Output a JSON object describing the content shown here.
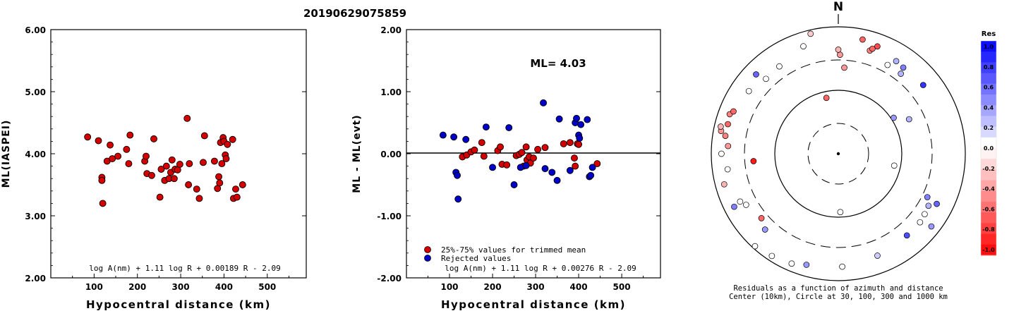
{
  "title": "20190629075859",
  "colors": {
    "red": "#d40000",
    "blue": "#0000c8",
    "black": "#000000"
  },
  "chart_data": [
    {
      "type": "scatter",
      "xlabel": "Hypocentral distance (km)",
      "ylabel": "ML(IASPEI)",
      "xlim": [
        0,
        590
      ],
      "ylim": [
        2.0,
        6.0
      ],
      "xticks": [
        100,
        200,
        300,
        400,
        500
      ],
      "yticks": [
        "2.00",
        "3.00",
        "4.00",
        "5.00",
        "6.00"
      ],
      "formula": "log A(nm) + 1.11 log R + 0.00189 R - 2.09",
      "series": [
        {
          "color": "#d40000",
          "points": [
            [
              85,
              4.27
            ],
            [
              110,
              4.21
            ],
            [
              118,
              3.62
            ],
            [
              118,
              3.57
            ],
            [
              120,
              3.2
            ],
            [
              130,
              3.88
            ],
            [
              137,
              4.14
            ],
            [
              142,
              3.92
            ],
            [
              155,
              3.96
            ],
            [
              175,
              4.07
            ],
            [
              180,
              3.84
            ],
            [
              183,
              4.3
            ],
            [
              217,
              3.88
            ],
            [
              220,
              3.96
            ],
            [
              222,
              3.68
            ],
            [
              233,
              3.65
            ],
            [
              238,
              4.24
            ],
            [
              252,
              3.3
            ],
            [
              255,
              3.75
            ],
            [
              263,
              3.57
            ],
            [
              267,
              3.8
            ],
            [
              273,
              3.6
            ],
            [
              277,
              3.7
            ],
            [
              280,
              3.9
            ],
            [
              285,
              3.6
            ],
            [
              287,
              3.75
            ],
            [
              293,
              3.74
            ],
            [
              298,
              3.83
            ],
            [
              315,
              4.57
            ],
            [
              318,
              3.5
            ],
            [
              320,
              3.84
            ],
            [
              337,
              3.43
            ],
            [
              343,
              3.28
            ],
            [
              352,
              3.86
            ],
            [
              355,
              4.29
            ],
            [
              378,
              3.88
            ],
            [
              385,
              3.44
            ],
            [
              388,
              3.63
            ],
            [
              390,
              3.53
            ],
            [
              392,
              4.18
            ],
            [
              395,
              3.84
            ],
            [
              398,
              4.26
            ],
            [
              400,
              4.2
            ],
            [
              403,
              3.98
            ],
            [
              405,
              3.92
            ],
            [
              408,
              4.15
            ],
            [
              420,
              4.23
            ],
            [
              422,
              3.28
            ],
            [
              427,
              3.43
            ],
            [
              430,
              3.3
            ],
            [
              443,
              3.5
            ]
          ]
        }
      ]
    },
    {
      "type": "scatter",
      "xlabel": "Hypocentral distance (km)",
      "ylabel": "ML - ML(evt)",
      "xlim": [
        0,
        590
      ],
      "ylim": [
        -2.0,
        2.0
      ],
      "xticks": [
        100,
        200,
        300,
        400,
        500
      ],
      "yticks": [
        "-2.00",
        "-1.00",
        "0.00",
        "1.00",
        "2.00"
      ],
      "ml_label": "ML= 4.03",
      "formula": "log A(nm) + 1.11 log R + 0.00276 R - 2.09",
      "legend": [
        "25%-75% values for trimmed mean",
        "Rejected values"
      ],
      "series": [
        {
          "name": "25%-75% values for trimmed mean",
          "color": "#d40000",
          "points": [
            [
              130,
              -0.05
            ],
            [
              140,
              -0.02
            ],
            [
              150,
              0.03
            ],
            [
              158,
              0.06
            ],
            [
              175,
              0.18
            ],
            [
              180,
              -0.04
            ],
            [
              212,
              0.05
            ],
            [
              218,
              0.11
            ],
            [
              222,
              -0.17
            ],
            [
              233,
              -0.18
            ],
            [
              255,
              -0.03
            ],
            [
              262,
              -0.01
            ],
            [
              268,
              0.02
            ],
            [
              272,
              -0.2
            ],
            [
              278,
              0.11
            ],
            [
              280,
              -0.1
            ],
            [
              285,
              -0.05
            ],
            [
              288,
              -0.15
            ],
            [
              295,
              -0.07
            ],
            [
              305,
              0.07
            ],
            [
              322,
              0.1
            ],
            [
              365,
              0.16
            ],
            [
              380,
              0.18
            ],
            [
              390,
              -0.07
            ],
            [
              392,
              -0.2
            ],
            [
              397,
              0.16
            ],
            [
              400,
              0.15
            ],
            [
              443,
              -0.16
            ]
          ]
        },
        {
          "name": "Rejected values",
          "color": "#0000c8",
          "points": [
            [
              85,
              0.3
            ],
            [
              110,
              0.27
            ],
            [
              115,
              -0.3
            ],
            [
              118,
              -0.35
            ],
            [
              120,
              -0.73
            ],
            [
              138,
              0.23
            ],
            [
              185,
              0.43
            ],
            [
              200,
              -0.22
            ],
            [
              238,
              0.42
            ],
            [
              250,
              -0.5
            ],
            [
              265,
              -0.22
            ],
            [
              278,
              -0.19
            ],
            [
              318,
              0.82
            ],
            [
              322,
              -0.24
            ],
            [
              338,
              -0.3
            ],
            [
              350,
              -0.43
            ],
            [
              355,
              0.56
            ],
            [
              380,
              -0.27
            ],
            [
              392,
              0.5
            ],
            [
              395,
              0.57
            ],
            [
              400,
              0.3
            ],
            [
              402,
              0.25
            ],
            [
              405,
              0.47
            ],
            [
              420,
              0.55
            ],
            [
              425,
              -0.37
            ],
            [
              428,
              -0.35
            ],
            [
              432,
              -0.22
            ]
          ]
        }
      ]
    }
  ],
  "polar": {
    "north_label": "N",
    "caption_line1": "Residuals as a function of azimuth and distance",
    "caption_line2": "Center (10km), Circle at 30, 100, 300 and 1000 km",
    "points": [
      {
        "az": 1,
        "d": 0.78,
        "r": -0.4
      },
      {
        "az": 4,
        "d": 0.68,
        "r": -0.4
      },
      {
        "az": 12,
        "d": 0.92,
        "r": -0.6
      },
      {
        "az": 17,
        "d": 0.85,
        "r": -0.5
      },
      {
        "az": 18,
        "d": 0.87,
        "r": -0.6
      },
      {
        "az": 20,
        "d": 0.9,
        "r": -0.7
      },
      {
        "az": 29,
        "d": 0.8,
        "r": 0.0
      },
      {
        "az": 32,
        "d": 0.86,
        "r": 0.3
      },
      {
        "az": 37,
        "d": 0.85,
        "r": 0.5
      },
      {
        "az": 38,
        "d": 0.8,
        "r": 0.3
      },
      {
        "az": 51,
        "d": 0.86,
        "r": 0.8
      },
      {
        "az": 57,
        "d": 0.52,
        "r": 0.4
      },
      {
        "az": 64,
        "d": 0.62,
        "r": 0.3
      },
      {
        "az": 102,
        "d": 0.45,
        "r": 0.0
      },
      {
        "az": 116,
        "d": 0.78,
        "r": 0.5
      },
      {
        "az": 117,
        "d": 0.87,
        "r": 0.6
      },
      {
        "az": 120,
        "d": 0.82,
        "r": 0.3
      },
      {
        "az": 125,
        "d": 0.83,
        "r": 0.0
      },
      {
        "az": 128,
        "d": 0.93,
        "r": 0.4
      },
      {
        "az": 130,
        "d": 0.84,
        "r": 0.0
      },
      {
        "az": 140,
        "d": 0.84,
        "r": 0.7
      },
      {
        "az": 159,
        "d": 0.86,
        "r": 0.2
      },
      {
        "az": 178,
        "d": 0.46,
        "r": 0.0
      },
      {
        "az": 178,
        "d": 0.89,
        "r": 0.0
      },
      {
        "az": 196,
        "d": 0.91,
        "r": 0.4
      },
      {
        "az": 203,
        "d": 0.94,
        "r": 0.0
      },
      {
        "az": 213,
        "d": 0.96,
        "r": 0.0
      },
      {
        "az": 222,
        "d": 0.98,
        "r": 0.0
      },
      {
        "az": 224,
        "d": 0.83,
        "r": 0.4
      },
      {
        "az": 230,
        "d": 0.79,
        "r": -0.6
      },
      {
        "az": 241,
        "d": 0.83,
        "r": 0.0
      },
      {
        "az": 243,
        "d": 0.92,
        "r": 0.5
      },
      {
        "az": 244,
        "d": 0.86,
        "r": 0.0
      },
      {
        "az": 255,
        "d": 0.93,
        "r": -0.3
      },
      {
        "az": 262,
        "d": 0.88,
        "r": 0.0
      },
      {
        "az": 265,
        "d": 0.67,
        "r": -0.9
      },
      {
        "az": 270,
        "d": 0.92,
        "r": 0.0
      },
      {
        "az": 274,
        "d": 0.87,
        "r": -0.4
      },
      {
        "az": 279,
        "d": 0.9,
        "r": -0.5
      },
      {
        "az": 281,
        "d": 0.94,
        "r": -0.4
      },
      {
        "az": 283,
        "d": 0.95,
        "r": -0.3
      },
      {
        "az": 285,
        "d": 0.9,
        "r": -0.6
      },
      {
        "az": 290,
        "d": 0.91,
        "r": -0.5
      },
      {
        "az": 292,
        "d": 0.89,
        "r": -0.6
      },
      {
        "az": 305,
        "d": 0.86,
        "r": 0.0
      },
      {
        "az": 314,
        "d": 0.9,
        "r": 0.6
      },
      {
        "az": 316,
        "d": 0.82,
        "r": 0.0
      },
      {
        "az": 326,
        "d": 0.83,
        "r": 0.0
      },
      {
        "az": 342,
        "d": 0.89,
        "r": 0.0
      },
      {
        "az": 347,
        "d": 0.97,
        "r": -0.2
      },
      {
        "az": 348,
        "d": 0.45,
        "r": -0.6
      },
      {
        "az": 360,
        "d": 0.82,
        "r": -0.3
      }
    ]
  },
  "colorbar": {
    "title": "Res",
    "labels": [
      "1.0",
      "0.8",
      "0.6",
      "0.4",
      "0.2",
      "0.0",
      "-0.2",
      "-0.4",
      "-0.6",
      "-0.8",
      "-1.0"
    ]
  }
}
